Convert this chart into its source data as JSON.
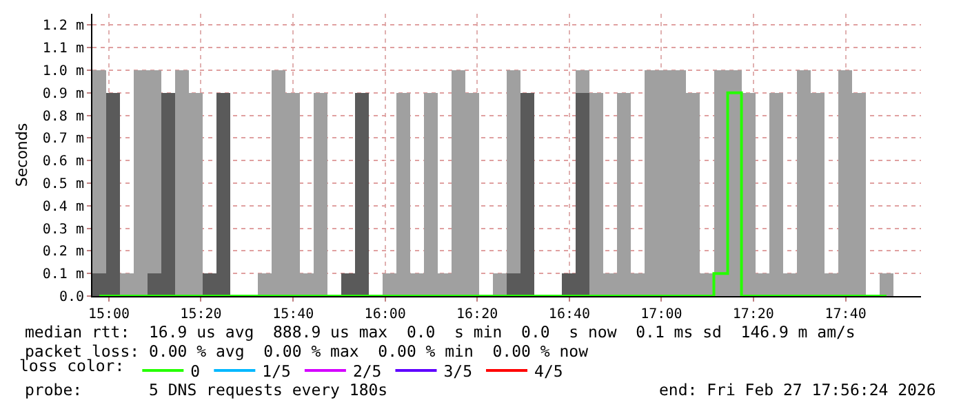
{
  "chart_data": {
    "type": "bar",
    "stacked": true,
    "ylabel": "Seconds",
    "legend_title": "loss color:",
    "legend": "bottom",
    "grid": true,
    "x": [
      14.965,
      15.015,
      15.065,
      15.115,
      15.165,
      15.215,
      15.265,
      15.315,
      15.365,
      15.415,
      15.465,
      15.515,
      15.565,
      15.615,
      15.665,
      15.715,
      15.765,
      15.815,
      15.865,
      15.915,
      15.965,
      16.015,
      16.065,
      16.115,
      16.165,
      16.215,
      16.265,
      16.315,
      16.365,
      16.415,
      16.465,
      16.515,
      16.565,
      16.615,
      16.665,
      16.715,
      16.765,
      16.815,
      16.865,
      16.915,
      16.965,
      17.015,
      17.065,
      17.115,
      17.165,
      17.215,
      17.265,
      17.315,
      17.365,
      17.415,
      17.465,
      17.515,
      17.565,
      17.615,
      17.665,
      17.715,
      17.765,
      17.815,
      17.865,
      17.915
    ],
    "xlim": [
      14.94,
      17.94
    ],
    "xticks": [
      {
        "value": 15,
        "label": "15:00"
      },
      {
        "value": 15.333,
        "label": "15:20"
      },
      {
        "value": 15.667,
        "label": "15:40"
      },
      {
        "value": 16,
        "label": "16:00"
      },
      {
        "value": 16.333,
        "label": "16:20"
      },
      {
        "value": 16.667,
        "label": "16:40"
      },
      {
        "value": 17,
        "label": "17:00"
      },
      {
        "value": 17.333,
        "label": "17:20"
      },
      {
        "value": 17.667,
        "label": "17:40"
      }
    ],
    "ylim": [
      0,
      1.25
    ],
    "yticks": [
      {
        "value": 0,
        "label": "0.0"
      },
      {
        "value": 0.1,
        "label": "0.1 m"
      },
      {
        "value": 0.2,
        "label": "0.2 m"
      },
      {
        "value": 0.3,
        "label": "0.3 m"
      },
      {
        "value": 0.4,
        "label": "0.4 m"
      },
      {
        "value": 0.5,
        "label": "0.5 m"
      },
      {
        "value": 0.6,
        "label": "0.6 m"
      },
      {
        "value": 0.7,
        "label": "0.7 m"
      },
      {
        "value": 0.8,
        "label": "0.8 m"
      },
      {
        "value": 0.9,
        "label": "0.9 m"
      },
      {
        "value": 1.0,
        "label": "1.0 m"
      },
      {
        "value": 1.1,
        "label": "1.1 m"
      },
      {
        "value": 1.2,
        "label": "1.2 m"
      }
    ],
    "series": [
      {
        "color": "#5a5a5a",
        "values": [
          0.1,
          0.9,
          0,
          0,
          0.1,
          0.9,
          0,
          0,
          0.1,
          0.9,
          0,
          0,
          0,
          0,
          0,
          0,
          0,
          0,
          0.1,
          0.9,
          0,
          0,
          0,
          0,
          0,
          0,
          0,
          0,
          0,
          0,
          0.1,
          0.9,
          0,
          0,
          0.1,
          0.9,
          0,
          0,
          0,
          0,
          0,
          0,
          0,
          0,
          0,
          0,
          0,
          0,
          0,
          0,
          0,
          0,
          0,
          0,
          0,
          0,
          0,
          0,
          0,
          0
        ]
      },
      {
        "color": "#a0a0a0",
        "values": [
          0.9,
          0,
          0.1,
          1.0,
          0.9,
          0,
          1.0,
          0.9,
          0,
          0,
          0,
          0,
          0.1,
          1.0,
          0.9,
          0.1,
          0.9,
          0,
          0,
          0,
          0,
          0.1,
          0.9,
          0.1,
          0.9,
          0.1,
          1.0,
          0.9,
          0,
          0.1,
          0.9,
          0,
          0,
          0,
          0,
          0.1,
          0.9,
          0.1,
          0.9,
          0.1,
          1.0,
          1.0,
          1.0,
          0.9,
          0.1,
          1.0,
          1.0,
          0.9,
          0.1,
          0.9,
          0.1,
          1.0,
          0.9,
          0.1,
          1.0,
          0.9,
          0,
          0.1,
          0,
          0
        ]
      },
      {
        "type": "step",
        "name": "0",
        "color": "#26ff00",
        "values": [
          0,
          0,
          0,
          0,
          0,
          0,
          0,
          0,
          0,
          0,
          0,
          0,
          0,
          0,
          0,
          0,
          0,
          0,
          0,
          0,
          0,
          0,
          0,
          0,
          0,
          0,
          0,
          0,
          0,
          0,
          0,
          0,
          0,
          0,
          0,
          0,
          0,
          0,
          0,
          0,
          0,
          0,
          0,
          0,
          0,
          0.1,
          0.9,
          0,
          0,
          0,
          0,
          0,
          0,
          0,
          0,
          0,
          0,
          0,
          null,
          null
        ]
      },
      {
        "type": "step",
        "name": "1/5",
        "color": "#00b8ff",
        "values": [
          null,
          null,
          null,
          null,
          null,
          null,
          null,
          null,
          null,
          null,
          null,
          null,
          null,
          null,
          null,
          null,
          null,
          null,
          null,
          null,
          null,
          null,
          null,
          null,
          null,
          null,
          null,
          null,
          null,
          null,
          null,
          null,
          null,
          null,
          null,
          null,
          null,
          null,
          null,
          null,
          null,
          null,
          null,
          null,
          null,
          null,
          null,
          null,
          null,
          null,
          null,
          null,
          null,
          null,
          null,
          null,
          null,
          null,
          null,
          null
        ]
      },
      {
        "type": "step",
        "name": "2/5",
        "color": "#d400ff",
        "values": [
          null,
          null,
          null,
          null,
          null,
          null,
          null,
          null,
          null,
          null,
          null,
          null,
          null,
          null,
          null,
          null,
          null,
          null,
          null,
          null,
          null,
          null,
          null,
          null,
          null,
          null,
          null,
          null,
          null,
          null,
          null,
          null,
          null,
          null,
          null,
          null,
          null,
          null,
          null,
          null,
          null,
          null,
          null,
          null,
          null,
          null,
          null,
          null,
          null,
          null,
          null,
          null,
          null,
          null,
          null,
          null,
          null,
          null,
          null,
          null
        ]
      },
      {
        "type": "step",
        "name": "3/5",
        "color": "#5f00ff",
        "values": [
          null,
          null,
          null,
          null,
          null,
          null,
          null,
          null,
          null,
          null,
          null,
          null,
          null,
          null,
          null,
          null,
          null,
          null,
          null,
          null,
          null,
          null,
          null,
          null,
          null,
          null,
          null,
          null,
          null,
          null,
          null,
          null,
          null,
          null,
          null,
          null,
          null,
          null,
          null,
          null,
          null,
          null,
          null,
          null,
          null,
          null,
          null,
          null,
          null,
          null,
          null,
          null,
          null,
          null,
          null,
          null,
          null,
          null,
          null,
          null
        ]
      },
      {
        "type": "step",
        "name": "4/5",
        "color": "#ff0000",
        "values": [
          null,
          null,
          null,
          null,
          null,
          null,
          null,
          null,
          null,
          null,
          null,
          null,
          null,
          null,
          null,
          null,
          null,
          null,
          null,
          null,
          null,
          null,
          null,
          null,
          null,
          null,
          null,
          null,
          null,
          null,
          null,
          null,
          null,
          null,
          null,
          null,
          null,
          null,
          null,
          null,
          null,
          null,
          null,
          null,
          null,
          null,
          null,
          null,
          null,
          null,
          null,
          null,
          null,
          null,
          null,
          null,
          null,
          null,
          null,
          null
        ]
      }
    ],
    "annotations": [
      "median rtt:  16.9 us avg  888.9 us max  0.0  s min  0.0  s now  0.1 ms sd  146.9 m am/s",
      "packet loss: 0.00 % avg  0.00 % max  0.00 % min  0.00 % now",
      "probe:       5 DNS requests every 180s",
      "end: Fri Feb 27 17:56:24 2026"
    ]
  }
}
